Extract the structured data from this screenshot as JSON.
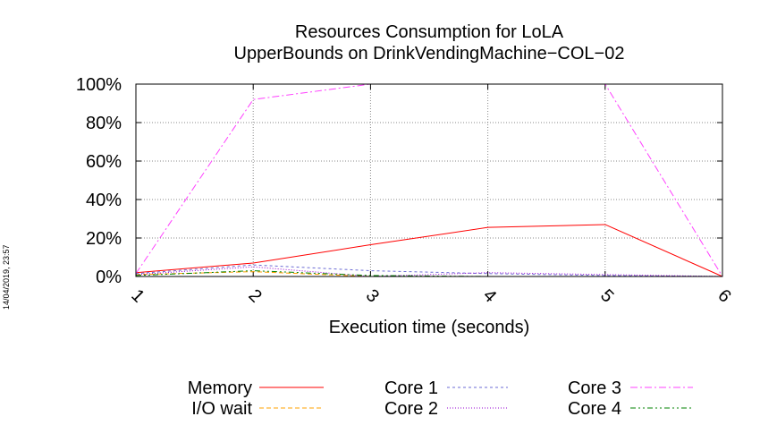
{
  "timestamp": "14/04/2019, 23:57",
  "chart_data": {
    "type": "line",
    "title": "Resources Consumption for LoLA",
    "subtitle": "UpperBounds on DrinkVendingMachine−COL−02",
    "xlabel": "Execution time (seconds)",
    "ylabel": "",
    "x": [
      1,
      2,
      3,
      4,
      5,
      6
    ],
    "xlim": [
      1,
      6
    ],
    "ylim": [
      0,
      100
    ],
    "x_ticks": [
      "1",
      "2",
      "3",
      "4",
      "5",
      "6"
    ],
    "y_ticks": [
      "0%",
      "20%",
      "40%",
      "60%",
      "80%",
      "100%"
    ],
    "grid": true,
    "legend_position": "bottom",
    "series": [
      {
        "name": "Memory",
        "color": "#ff0000",
        "dash": "solid",
        "values": [
          2,
          7,
          16.5,
          25.5,
          27,
          0
        ]
      },
      {
        "name": "I/O wait",
        "color": "#ffa000",
        "dash": "dashed",
        "values": [
          1,
          2.5,
          0,
          0,
          0,
          0
        ]
      },
      {
        "name": "Core 1",
        "color": "#6b6bd4",
        "dash": "dashed-fine",
        "values": [
          1.5,
          6,
          3,
          1.5,
          0.5,
          0
        ]
      },
      {
        "name": "Core 2",
        "color": "#9400d3",
        "dash": "dotted",
        "values": [
          1,
          5,
          0,
          2,
          1,
          0
        ]
      },
      {
        "name": "Core 3",
        "color": "#ff40ff",
        "dash": "dashdot",
        "values": [
          1.5,
          92,
          100,
          100,
          100,
          0
        ]
      },
      {
        "name": "Core 4",
        "color": "#008000",
        "dash": "dashdotdot",
        "values": [
          0.5,
          3,
          0.5,
          0,
          0,
          0
        ]
      }
    ]
  }
}
